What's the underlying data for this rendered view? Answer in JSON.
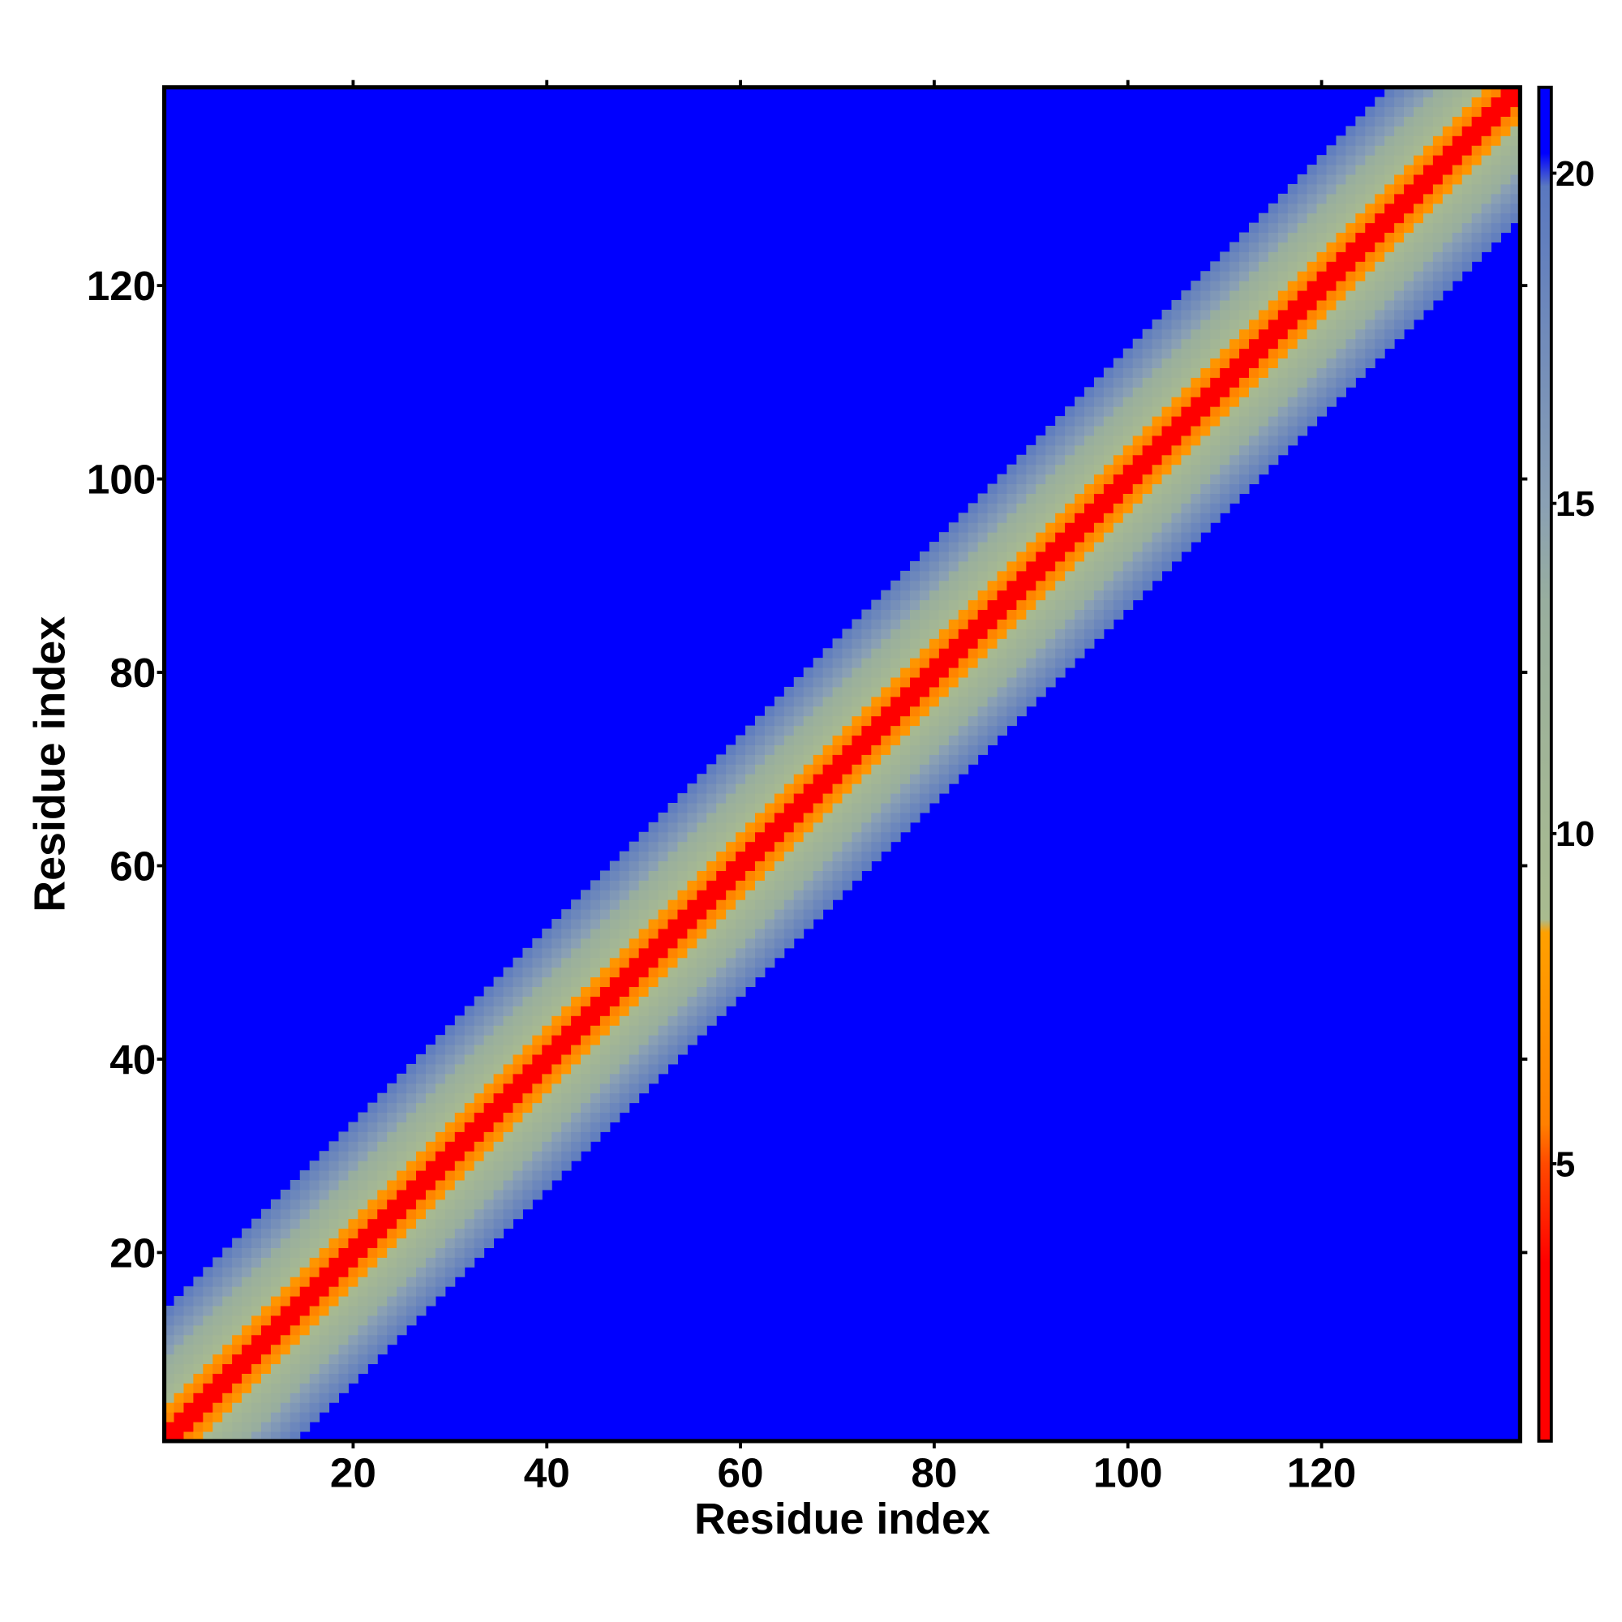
{
  "chart_data": {
    "type": "heatmap",
    "xlabel": "Residue index",
    "ylabel": "Residue index",
    "xlim": [
      0.5,
      140.5
    ],
    "ylim": [
      0.5,
      140.5
    ],
    "xticks": [
      20,
      40,
      60,
      80,
      100,
      120
    ],
    "yticks": [
      20,
      40,
      60,
      80,
      100,
      120
    ],
    "offset_values": [
      1,
      2.5,
      6,
      7.5,
      9.5,
      10.5,
      11.5,
      12.5,
      13.5,
      15,
      16,
      17,
      18,
      19
    ],
    "background_value": 21.3,
    "clim": [
      0.8,
      21.3
    ],
    "cticks": [
      5,
      10,
      15,
      20
    ],
    "colorscale": [
      [
        0.8,
        "#ff0000"
      ],
      [
        3.5,
        "#ff0000"
      ],
      [
        5,
        "#ff4a00"
      ],
      [
        5.6,
        "#ff8000"
      ],
      [
        8.5,
        "#ffa000"
      ],
      [
        8.7,
        "#a9bb8f"
      ],
      [
        13.5,
        "#98ae9e"
      ],
      [
        15,
        "#8aa0b4"
      ],
      [
        19.8,
        "#5a78c0"
      ],
      [
        20.3,
        "#0000ff"
      ],
      [
        21.3,
        "#0000ff"
      ]
    ]
  }
}
